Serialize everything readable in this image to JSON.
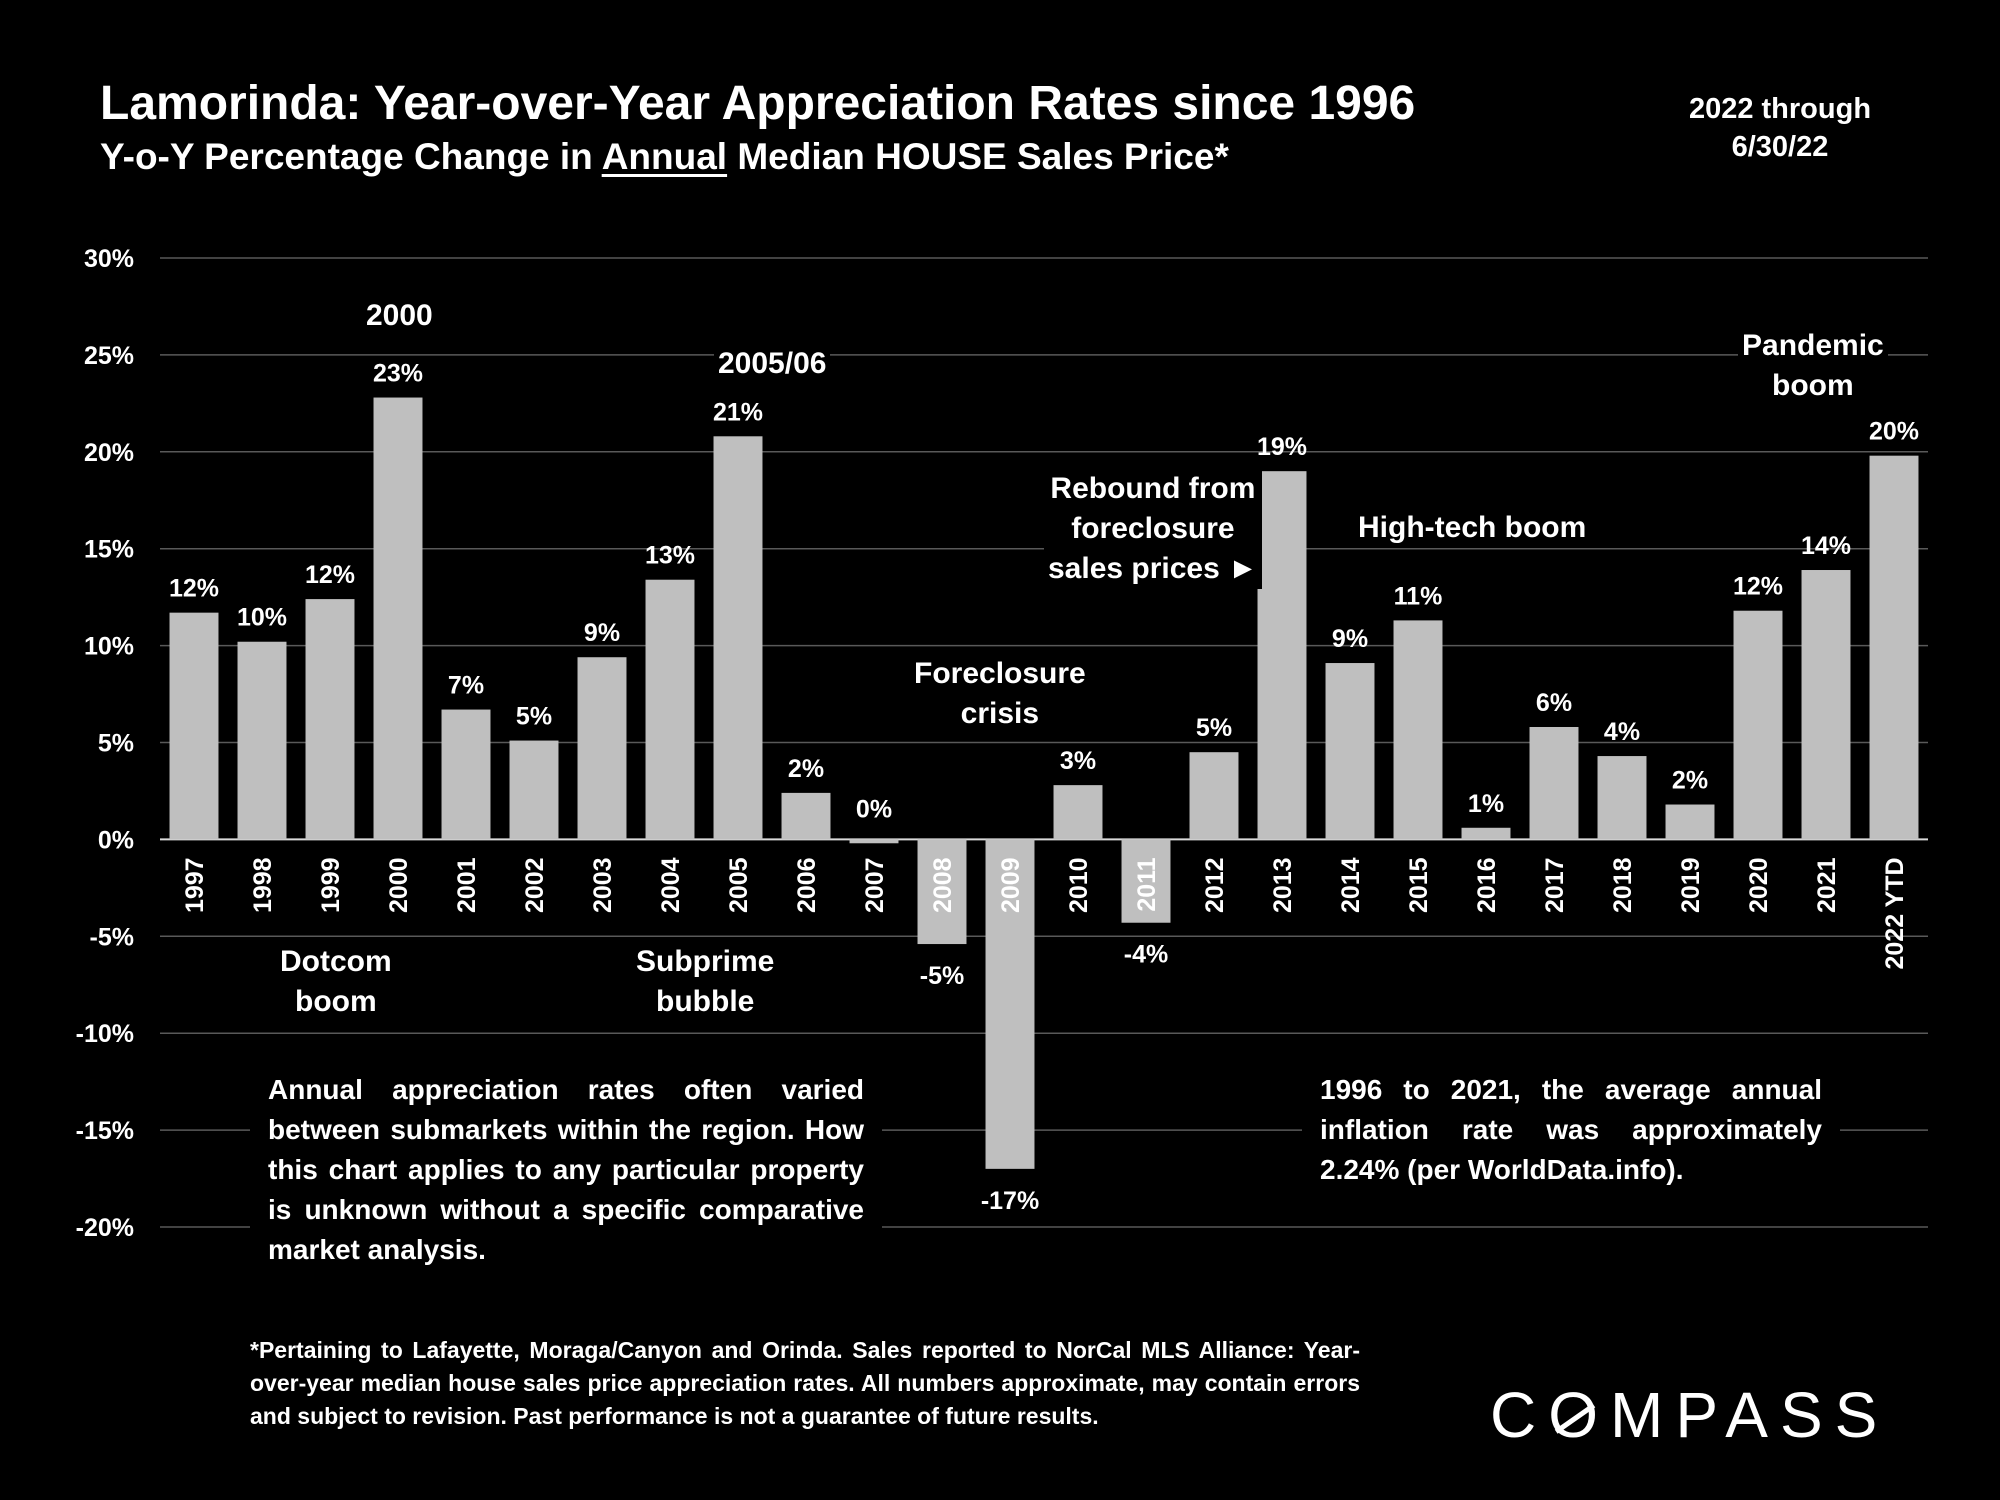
{
  "header": {
    "title": "Lamorinda: Year-over-Year Appreciation Rates since 1996",
    "subtitle_before": "Y-o-Y Percentage Change in ",
    "subtitle_underlined": "Annual",
    "subtitle_after": " Median HOUSE Sales Price*",
    "date_note_line1": "2022 through",
    "date_note_line2": "6/30/22"
  },
  "chart_data": {
    "type": "bar",
    "categories": [
      "1997",
      "1998",
      "1999",
      "2000",
      "2001",
      "2002",
      "2003",
      "2004",
      "2005",
      "2006",
      "2007",
      "2008",
      "2009",
      "2010",
      "2011",
      "2012",
      "2013",
      "2014",
      "2015",
      "2016",
      "2017",
      "2018",
      "2019",
      "2020",
      "2021",
      "2022 YTD"
    ],
    "values": [
      11.7,
      10.2,
      12.4,
      22.8,
      6.7,
      5.1,
      9.4,
      13.4,
      20.8,
      2.4,
      -0.2,
      -5.4,
      -17.0,
      2.8,
      -4.3,
      4.5,
      19.0,
      9.1,
      11.3,
      0.6,
      5.8,
      4.3,
      1.8,
      11.8,
      13.9,
      19.8
    ],
    "data_labels": [
      "12%",
      "10%",
      "12%",
      "23%",
      "7%",
      "5%",
      "9%",
      "13%",
      "21%",
      "2%",
      "0%",
      "-5%",
      "-17%",
      "3%",
      "-4%",
      "5%",
      "19%",
      "9%",
      "11%",
      "1%",
      "6%",
      "4%",
      "2%",
      "12%",
      "14%",
      "20%"
    ],
    "ylim": [
      -20,
      30
    ],
    "yticks": [
      30,
      25,
      20,
      15,
      10,
      5,
      0,
      -5,
      -10,
      -15,
      -20
    ],
    "ytick_labels": [
      "30%",
      "25%",
      "20%",
      "15%",
      "10%",
      "5%",
      "0%",
      "-5%",
      "-10%",
      "-15%",
      "-20%"
    ],
    "grid": true,
    "bar_color": "#bfbfbf",
    "gridline_color": "#595959",
    "xlabel": "",
    "ylabel": ""
  },
  "annotations": {
    "y2000": "2000",
    "y2005_06": "2005/06",
    "dotcom_line1": "Dotcom",
    "dotcom_line2": "boom",
    "subprime_line1": "Subprime",
    "subprime_line2": "bubble",
    "foreclosure_line1": "Foreclosure",
    "foreclosure_line2": "crisis",
    "rebound_line1": "Rebound from",
    "rebound_line2": "foreclosure",
    "rebound_line3": "sales prices ►",
    "hightech": "High-tech boom",
    "pandemic_line1": "Pandemic",
    "pandemic_line2": "boom"
  },
  "notes": {
    "left_box": "Annual appreciation rates often varied between submarkets within the region. How this chart applies to any particular property is unknown without a specific comparative market analysis.",
    "right_box": "1996 to 2021, the average annual inflation rate was approximately 2.24% (per WorldData.info).",
    "footnote": "*Pertaining to Lafayette, Moraga/Canyon and Orinda. Sales reported to NorCal MLS Alliance: Year-over-year median house sales price appreciation rates. All numbers approximate, may contain errors and subject to revision. Past performance is not a guarantee of future results."
  },
  "brand": {
    "logo_part1": "C",
    "logo_o": "O",
    "logo_part2": "MPASS"
  }
}
